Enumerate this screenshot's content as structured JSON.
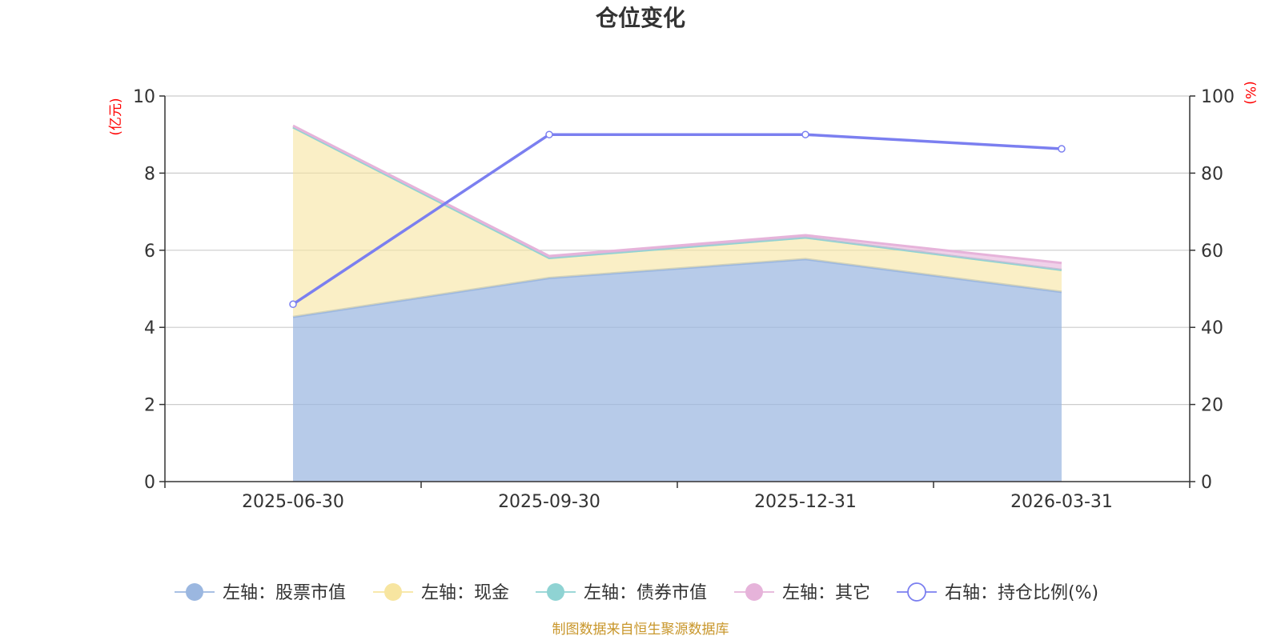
{
  "chart_data": {
    "type": "area",
    "title": "仓位变化",
    "left_axis": {
      "unit_label": "(亿元)",
      "range": [
        0,
        10
      ],
      "ticks": [
        "0",
        "2",
        "4",
        "6",
        "8",
        "10"
      ]
    },
    "right_axis": {
      "unit_label": "(%)",
      "range": [
        0,
        100
      ],
      "ticks": [
        "0",
        "20",
        "40",
        "60",
        "80",
        "100"
      ]
    },
    "categories": [
      "2025-06-30",
      "2025-09-30",
      "2025-12-31",
      "2026-03-31"
    ],
    "stacked": true,
    "grid": true,
    "legend_position": "bottom",
    "series": [
      {
        "name": "左轴：股票市值",
        "axis": "left",
        "type": "area",
        "color": "#9bb7e0",
        "values": [
          4.27,
          5.28,
          5.77,
          4.92
        ]
      },
      {
        "name": "左轴：现金",
        "axis": "left",
        "type": "area",
        "color": "#f7e5a0",
        "values": [
          4.92,
          0.52,
          0.56,
          0.57
        ]
      },
      {
        "name": "左轴：债券市值",
        "axis": "left",
        "type": "area",
        "color": "#8fd3d3",
        "values": [
          0.0,
          0.0,
          0.0,
          0.0
        ]
      },
      {
        "name": "左轴：其它",
        "axis": "left",
        "type": "area",
        "color": "#e6b3da",
        "values": [
          0.04,
          0.05,
          0.06,
          0.18
        ]
      },
      {
        "name": "右轴：持仓比例(%)",
        "axis": "right",
        "type": "line",
        "color": "#7b7ff0",
        "values": [
          46.0,
          90.0,
          90.0,
          86.3
        ]
      }
    ]
  },
  "source_note": "制图数据来自恒生聚源数据库"
}
